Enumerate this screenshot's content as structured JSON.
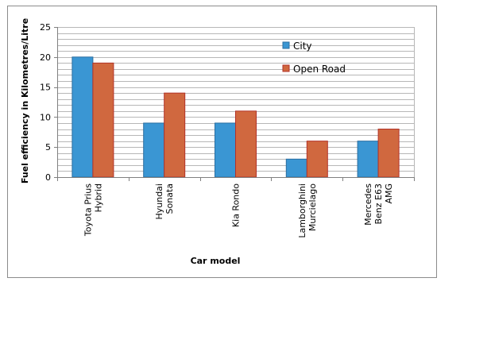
{
  "chart_data": {
    "type": "bar",
    "categories": [
      [
        "Toyota Prius",
        "Hybrid"
      ],
      [
        "Hyundai",
        "Sonata"
      ],
      [
        "Kia Rondo"
      ],
      [
        "Lamborghini",
        "Murcielago"
      ],
      [
        "Mercedes",
        "Benz E63",
        "AMG"
      ]
    ],
    "series": [
      {
        "name": "City",
        "values": [
          20,
          9,
          9,
          3,
          6
        ],
        "color": "#3a96d3",
        "edge": "#2b6ea1"
      },
      {
        "name": "Open Road",
        "values": [
          19,
          14,
          11,
          6,
          8
        ],
        "color": "#d0683f",
        "edge": "#b23228"
      }
    ],
    "xlabel": "Car model",
    "ylabel": "Fuel efficiency in Kilometres/Litre",
    "ylim": [
      0,
      25
    ],
    "yticks": [
      0,
      5,
      10,
      15,
      20,
      25
    ],
    "minor_grid_step": 1,
    "grid": true,
    "legend_position": "top-right",
    "colors": {
      "grid": "#b7b7b7",
      "axis": "#808080"
    }
  }
}
